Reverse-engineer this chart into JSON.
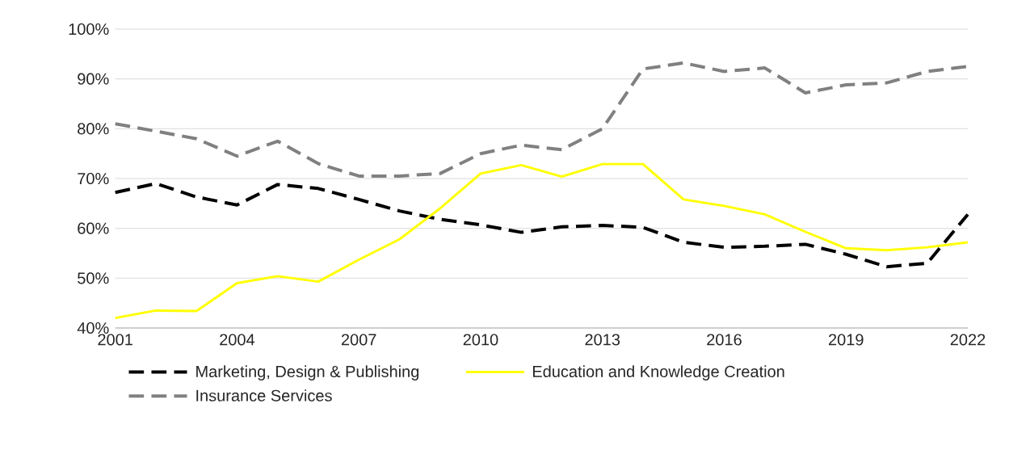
{
  "chart_data": {
    "type": "line",
    "x": [
      2001,
      2002,
      2003,
      2004,
      2005,
      2006,
      2007,
      2008,
      2009,
      2010,
      2011,
      2012,
      2013,
      2014,
      2015,
      2016,
      2017,
      2018,
      2019,
      2020,
      2021,
      2022
    ],
    "series": [
      {
        "name": "Marketing, Design & Publishing",
        "color": "#000000",
        "line_style": "dashed",
        "values": [
          67.2,
          69,
          66.3,
          64.7,
          68.8,
          68,
          65.8,
          63.5,
          61.8,
          60.7,
          59.2,
          60.3,
          60.6,
          60.2,
          57.2,
          56.2,
          56.4,
          56.8,
          54.8,
          52.3,
          53,
          62.8
        ]
      },
      {
        "name": "Education and Knowledge Creation",
        "color": "#ffff00",
        "line_style": "solid",
        "values": [
          42,
          43.5,
          43.4,
          49,
          50.4,
          49.3,
          53.7,
          57.8,
          64,
          71,
          72.7,
          70.4,
          72.9,
          72.9,
          65.8,
          64.5,
          62.8,
          59.3,
          56,
          55.6,
          56.2,
          57.2
        ]
      },
      {
        "name": "Insurance Services",
        "color": "#808080",
        "line_style": "dashed",
        "values": [
          81,
          79.5,
          78,
          74.5,
          77.5,
          73,
          70.5,
          70.5,
          71,
          75,
          76.7,
          75.8,
          80,
          92,
          93.2,
          91.5,
          92.2,
          87.2,
          88.8,
          89.2,
          91.5,
          92.5
        ]
      }
    ],
    "xlim": [
      2001,
      2022
    ],
    "xticks": [
      2001,
      2004,
      2007,
      2010,
      2013,
      2016,
      2019,
      2022
    ],
    "ylim": [
      40,
      100
    ],
    "yticks": [
      {
        "value": 40,
        "label": "40%"
      },
      {
        "value": 50,
        "label": "50%"
      },
      {
        "value": 60,
        "label": "60%"
      },
      {
        "value": 70,
        "label": "70%"
      },
      {
        "value": 80,
        "label": "80%"
      },
      {
        "value": 90,
        "label": "90%"
      },
      {
        "value": 100,
        "label": "100%"
      }
    ],
    "grid": "y",
    "legend": "bottom",
    "marker": "none"
  }
}
